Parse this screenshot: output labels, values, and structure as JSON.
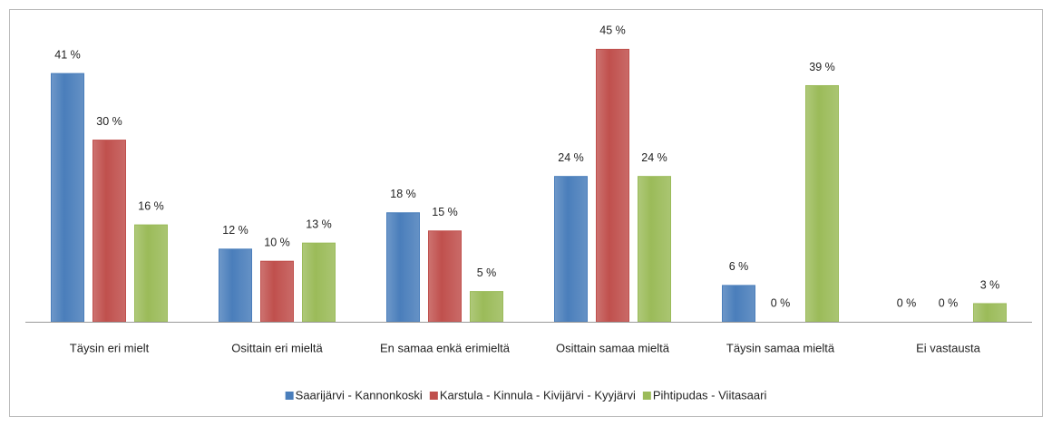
{
  "chart_data": {
    "type": "bar",
    "categories": [
      "Täysin eri mielt",
      "Osittain eri mieltä",
      "En samaa enkä erimieltä",
      "Osittain samaa mieltä",
      "Täysin samaa mieltä",
      "Ei vastausta"
    ],
    "series": [
      {
        "name": "Saarijärvi -  Kannonkoski",
        "color": "#4a7ebb",
        "values": [
          41,
          12,
          18,
          24,
          6,
          0
        ],
        "value_labels": [
          "41 %",
          "12 %",
          "18 %",
          "24 %",
          "6 %",
          "0 %"
        ]
      },
      {
        "name": "Karstula - Kinnula - Kivijärvi - Kyyjärvi",
        "color": "#c0504d",
        "values": [
          30,
          10,
          15,
          45,
          0,
          0
        ],
        "value_labels": [
          "30 %",
          "10 %",
          "15 %",
          "45 %",
          "0 %",
          "0 %"
        ]
      },
      {
        "name": "Pihtipudas - Viitasaari",
        "color": "#9bbb59",
        "values": [
          16,
          13,
          5,
          24,
          39,
          3
        ],
        "value_labels": [
          "16 %",
          "13 %",
          "5 %",
          "24 %",
          "39 %",
          "3 %"
        ]
      }
    ],
    "legend": "bottom"
  }
}
